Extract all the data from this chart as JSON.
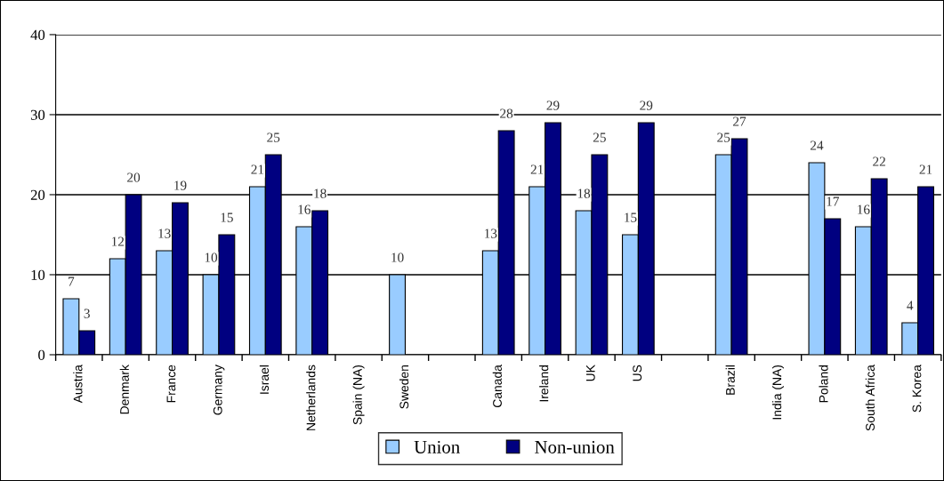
{
  "chart_data": {
    "type": "bar",
    "categories": [
      "Austria",
      "Denmark",
      "France",
      "Germany",
      "Israel",
      "Netherlands",
      "Spain (NA)",
      "Sweden",
      null,
      "Canada",
      "Ireland",
      "UK",
      "US",
      null,
      "Brazil",
      "India (NA)",
      "Poland",
      "South Africa",
      "S. Korea"
    ],
    "series": [
      {
        "name": "Union",
        "color": "#99ccff",
        "values": [
          7,
          12,
          13,
          10,
          21,
          16,
          null,
          10,
          null,
          13,
          21,
          18,
          15,
          null,
          25,
          null,
          24,
          16,
          4
        ]
      },
      {
        "name": "Non-union",
        "color": "#000080",
        "values": [
          3,
          20,
          19,
          15,
          25,
          18,
          null,
          null,
          null,
          28,
          29,
          25,
          29,
          null,
          27,
          null,
          17,
          22,
          21
        ]
      }
    ],
    "ylim": [
      0,
      40
    ],
    "yticks": [
      0,
      10,
      20,
      30,
      40
    ],
    "grid": "y",
    "legend": "bottom",
    "data_labels": true
  }
}
